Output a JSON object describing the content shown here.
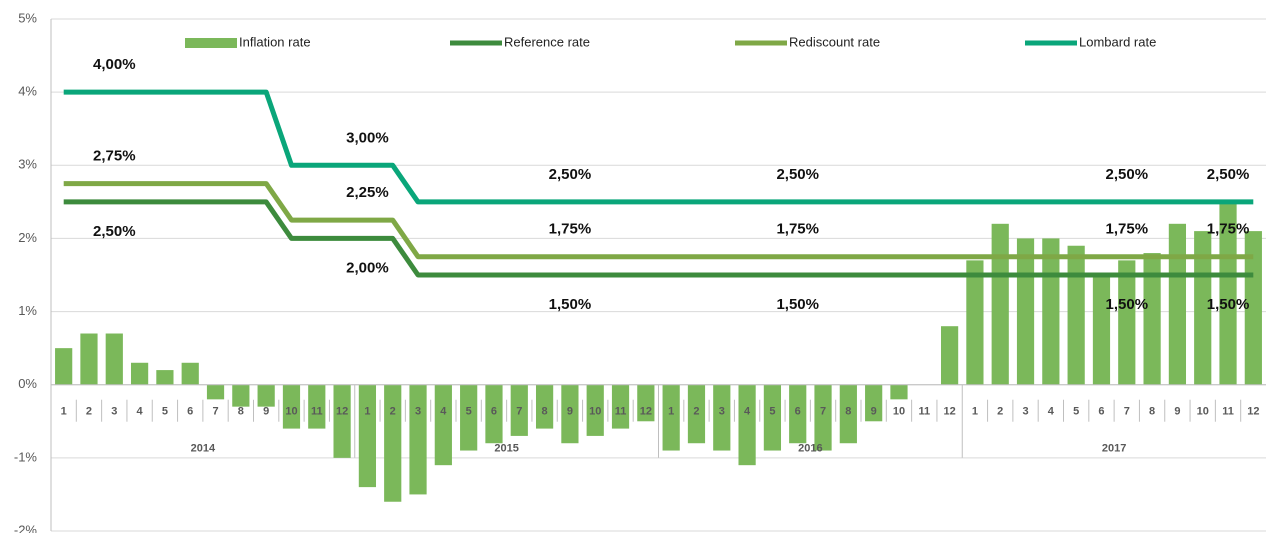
{
  "chart_data": {
    "type": "bar",
    "categories": [
      "1",
      "2",
      "3",
      "4",
      "5",
      "6",
      "7",
      "8",
      "9",
      "10",
      "11",
      "12",
      "1",
      "2",
      "3",
      "4",
      "5",
      "6",
      "7",
      "8",
      "9",
      "10",
      "11",
      "12",
      "1",
      "2",
      "3",
      "4",
      "5",
      "6",
      "7",
      "8",
      "9",
      "10",
      "11",
      "12",
      "1",
      "2",
      "3",
      "4",
      "5",
      "6",
      "7",
      "8",
      "9",
      "10",
      "11",
      "12"
    ],
    "years": [
      "2014",
      "2015",
      "2016",
      "2017"
    ],
    "ylim": [
      -2,
      5
    ],
    "yticks": [
      {
        "value": 5,
        "label": "5%"
      },
      {
        "value": 4,
        "label": "4%"
      },
      {
        "value": 3,
        "label": "3%"
      },
      {
        "value": 2,
        "label": "2%"
      },
      {
        "value": 1,
        "label": "1%"
      },
      {
        "value": 0,
        "label": "0%"
      },
      {
        "value": -1,
        "label": "-1%"
      },
      {
        "value": -2,
        "label": "-2%"
      }
    ],
    "grid": true,
    "legend": "top",
    "series": [
      {
        "name": "Inflation rate",
        "type": "bar",
        "color": "#7bb85a",
        "values": [
          0.5,
          0.7,
          0.7,
          0.3,
          0.2,
          0.3,
          -0.2,
          -0.3,
          -0.3,
          -0.6,
          -0.6,
          -1.0,
          -1.4,
          -1.6,
          -1.5,
          -1.1,
          -0.9,
          -0.8,
          -0.7,
          -0.6,
          -0.8,
          -0.7,
          -0.6,
          -0.5,
          -0.9,
          -0.8,
          -0.9,
          -1.1,
          -0.9,
          -0.8,
          -0.9,
          -0.8,
          -0.5,
          -0.2,
          0,
          0.8,
          1.7,
          2.2,
          2.0,
          2.0,
          1.9,
          1.5,
          1.7,
          1.8,
          2.2,
          2.1,
          2.5,
          2.1
        ]
      },
      {
        "name": "Reference rate",
        "type": "line",
        "color": "#3d8b3d",
        "label_position": "below",
        "values": [
          2.5,
          2.5,
          2.5,
          2.5,
          2.5,
          2.5,
          2.5,
          2.5,
          2.5,
          2.0,
          2.0,
          2.0,
          2.0,
          2.0,
          1.5,
          1.5,
          1.5,
          1.5,
          1.5,
          1.5,
          1.5,
          1.5,
          1.5,
          1.5,
          1.5,
          1.5,
          1.5,
          1.5,
          1.5,
          1.5,
          1.5,
          1.5,
          1.5,
          1.5,
          1.5,
          1.5,
          1.5,
          1.5,
          1.5,
          1.5,
          1.5,
          1.5,
          1.5,
          1.5,
          1.5,
          1.5,
          1.5,
          1.5
        ],
        "value_labels": [
          null,
          null,
          "2,50%",
          null,
          null,
          null,
          null,
          null,
          null,
          null,
          null,
          null,
          "2,00%",
          null,
          null,
          null,
          null,
          null,
          null,
          null,
          "1,50%",
          null,
          null,
          null,
          null,
          null,
          null,
          null,
          null,
          "1,50%",
          null,
          null,
          null,
          null,
          null,
          null,
          null,
          null,
          null,
          null,
          null,
          null,
          "1,50%",
          null,
          null,
          null,
          "1,50%",
          null
        ]
      },
      {
        "name": "Rediscount rate",
        "type": "line",
        "color": "#7fa846",
        "label_position": "above",
        "values": [
          2.75,
          2.75,
          2.75,
          2.75,
          2.75,
          2.75,
          2.75,
          2.75,
          2.75,
          2.25,
          2.25,
          2.25,
          2.25,
          2.25,
          1.75,
          1.75,
          1.75,
          1.75,
          1.75,
          1.75,
          1.75,
          1.75,
          1.75,
          1.75,
          1.75,
          1.75,
          1.75,
          1.75,
          1.75,
          1.75,
          1.75,
          1.75,
          1.75,
          1.75,
          1.75,
          1.75,
          1.75,
          1.75,
          1.75,
          1.75,
          1.75,
          1.75,
          1.75,
          1.75,
          1.75,
          1.75,
          1.75,
          1.75
        ],
        "value_labels": [
          null,
          null,
          "2,75%",
          null,
          null,
          null,
          null,
          null,
          null,
          null,
          null,
          null,
          "2,25%",
          null,
          null,
          null,
          null,
          null,
          null,
          null,
          "1,75%",
          null,
          null,
          null,
          null,
          null,
          null,
          null,
          null,
          "1,75%",
          null,
          null,
          null,
          null,
          null,
          null,
          null,
          null,
          null,
          null,
          null,
          null,
          "1,75%",
          null,
          null,
          null,
          "1,75%",
          null
        ]
      },
      {
        "name": "Lombard rate",
        "type": "line",
        "color": "#0aa67a",
        "label_position": "above",
        "values": [
          4,
          4,
          4,
          4,
          4,
          4,
          4,
          4,
          4,
          3,
          3,
          3,
          3,
          3,
          2.5,
          2.5,
          2.5,
          2.5,
          2.5,
          2.5,
          2.5,
          2.5,
          2.5,
          2.5,
          2.5,
          2.5,
          2.5,
          2.5,
          2.5,
          2.5,
          2.5,
          2.5,
          2.5,
          2.5,
          2.5,
          2.5,
          2.5,
          2.5,
          2.5,
          2.5,
          2.5,
          2.5,
          2.5,
          2.5,
          2.5,
          2.5,
          2.5,
          2.5
        ],
        "value_labels": [
          null,
          null,
          "4,00%",
          null,
          null,
          null,
          null,
          null,
          null,
          null,
          null,
          null,
          "3,00%",
          null,
          null,
          null,
          null,
          null,
          null,
          null,
          "2,50%",
          null,
          null,
          null,
          null,
          null,
          null,
          null,
          null,
          "2,50%",
          null,
          null,
          null,
          null,
          null,
          null,
          null,
          null,
          null,
          null,
          null,
          null,
          "2,50%",
          null,
          null,
          null,
          "2,50%",
          null
        ]
      }
    ]
  }
}
